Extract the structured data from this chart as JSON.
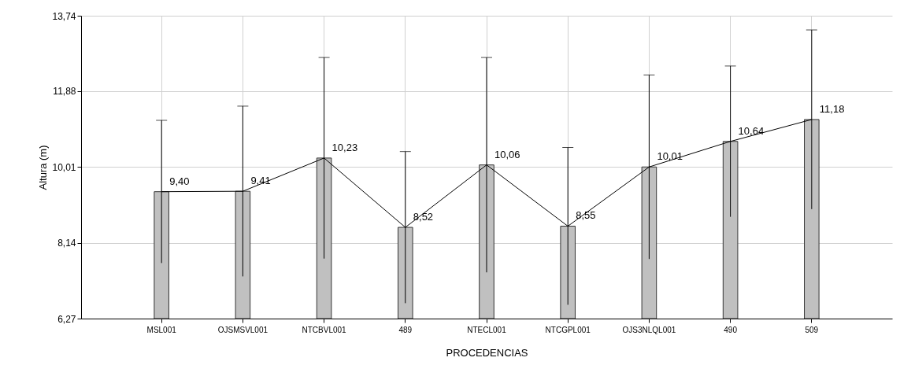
{
  "chart_data": {
    "type": "bar",
    "xlabel": "PROCEDENCIAS",
    "ylabel": "Altura (m)",
    "categories": [
      "MSL001",
      "OJSMSVL001",
      "NTCBVL001",
      "489",
      "NTECL001",
      "NTCGPL001",
      "OJS3NLQL001",
      "490",
      "509"
    ],
    "series": [
      {
        "type": "bar",
        "color": "#c0c0c0",
        "values": [
          9.4,
          9.41,
          10.23,
          8.52,
          10.06,
          8.55,
          10.01,
          10.64,
          11.18
        ],
        "errors": [
          1.76,
          2.1,
          2.48,
          1.87,
          2.65,
          1.94,
          2.27,
          1.86,
          2.21
        ]
      },
      {
        "type": "line",
        "color": "#000000",
        "values": [
          9.4,
          9.41,
          10.23,
          8.52,
          10.06,
          8.55,
          10.01,
          10.64,
          11.18
        ],
        "value_labels": [
          "9,40",
          "9,41",
          "10,23",
          "8,52",
          "10,06",
          "8,55",
          "10,01",
          "10,64",
          "11,18"
        ]
      }
    ],
    "ylim": [
      6.27,
      13.74
    ],
    "yticks": [
      {
        "value": 6.27,
        "label": "6,27"
      },
      {
        "value": 8.14,
        "label": "8,14"
      },
      {
        "value": 10.01,
        "label": "10,01"
      },
      {
        "value": 11.88,
        "label": "11,88"
      },
      {
        "value": 13.74,
        "label": "13,74"
      }
    ],
    "grid": true,
    "marker": "none"
  }
}
